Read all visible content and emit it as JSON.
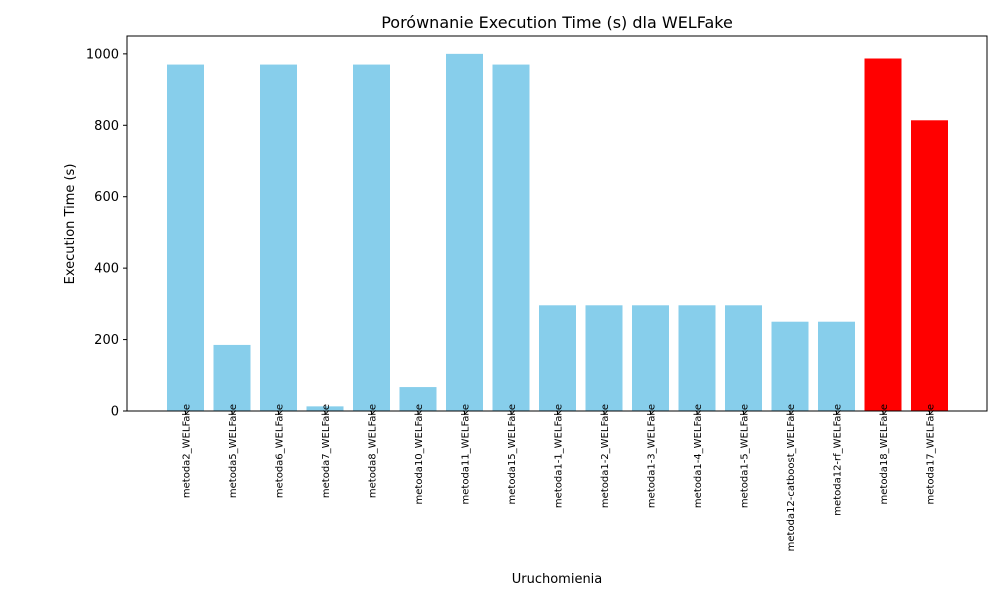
{
  "chart_data": {
    "type": "bar",
    "title": "Porównanie Execution Time (s) dla WELFake",
    "xlabel": "Uruchomienia",
    "ylabel": "Execution Time (s)",
    "ylim": [
      0,
      1050
    ],
    "yticks": [
      0,
      200,
      400,
      600,
      800,
      1000
    ],
    "grid": false,
    "categories": [
      "metoda2_WELFake",
      "metoda5_WELFake",
      "metoda6_WELFake",
      "metoda7_WELFake",
      "metoda8_WELFake",
      "metoda10_WELFake",
      "metoda11_WELFake",
      "metoda15_WELFake",
      "metoda1-1_WELFake",
      "metoda1-2_WELFake",
      "metoda1-3_WELFake",
      "metoda1-4_WELFake",
      "metoda1-5_WELFake",
      "metoda12-catboost_WELFake",
      "metoda12-rf_WELFake",
      "metoda18_WELFake",
      "metoda17_WELFake"
    ],
    "values": [
      970,
      185,
      970,
      13,
      970,
      67,
      1000,
      970,
      296,
      296,
      296,
      296,
      296,
      250,
      250,
      987,
      814
    ],
    "colors": [
      "#87ceeb",
      "#87ceeb",
      "#87ceeb",
      "#87ceeb",
      "#87ceeb",
      "#87ceeb",
      "#87ceeb",
      "#87ceeb",
      "#87ceeb",
      "#87ceeb",
      "#87ceeb",
      "#87ceeb",
      "#87ceeb",
      "#87ceeb",
      "#87ceeb",
      "#ff0000",
      "#ff0000"
    ]
  }
}
